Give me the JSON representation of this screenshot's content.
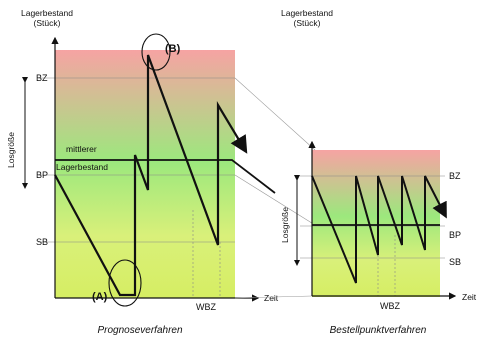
{
  "colors": {
    "gradient_top": "#f6a3a3",
    "gradient_mid": "#d9f07a",
    "gradient_bottom": "#d6ee63",
    "gradient_green": "#9ce87d",
    "line": "#111111",
    "guide": "#777777"
  },
  "left_chart": {
    "ylabel_line1": "Lagerbestand",
    "ylabel_line2": "(Stück)",
    "xlabel": "Zeit",
    "caption": "Prognoseverfahren",
    "y_ticks": [
      "BZ",
      "BP",
      "SB"
    ],
    "batch_label": "Losgröße",
    "mean_label_line1": "mittlerer",
    "mean_label_line2": "Lagerbestand",
    "marker_a": "(A)",
    "marker_b": "(B)",
    "wbz_label": "WBZ"
  },
  "right_chart": {
    "ylabel_line1": "Lagerbestand",
    "ylabel_line2": "(Stück)",
    "xlabel": "Zeit",
    "caption": "Bestellpunktverfahren",
    "y_ticks": [
      "BZ",
      "BP",
      "SB"
    ],
    "batch_label": "Losgröße",
    "wbz_label": "WBZ"
  }
}
